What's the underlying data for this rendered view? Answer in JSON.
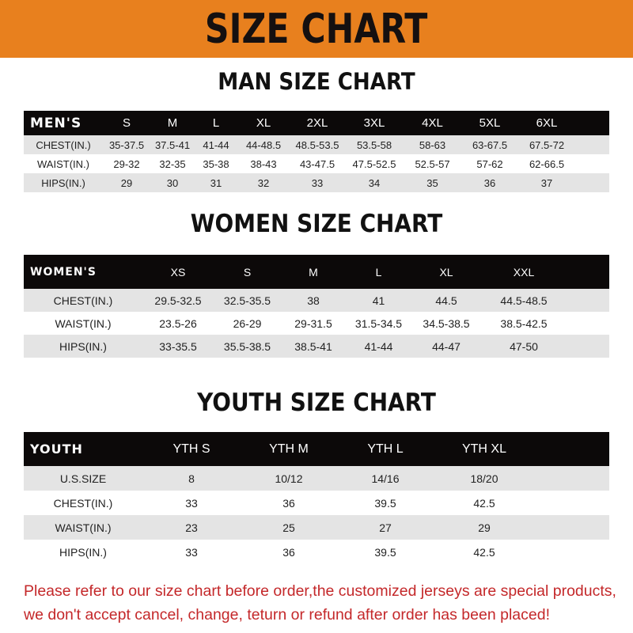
{
  "title": "SIZE CHART",
  "colors": {
    "banner": "#E8801E",
    "header_row": "#0c0909",
    "stripe": "#e4e4e4",
    "note": "#C4282A"
  },
  "men": {
    "title": "MAN SIZE CHART",
    "header": [
      "MEN'S",
      "S",
      "M",
      "L",
      "XL",
      "2XL",
      "3XL",
      "4XL",
      "5XL",
      "6XL"
    ],
    "rows": [
      [
        "CHEST(IN.)",
        "35-37.5",
        "37.5-41",
        "41-44",
        "44-48.5",
        "48.5-53.5",
        "53.5-58",
        "58-63",
        "63-67.5",
        "67.5-72"
      ],
      [
        "WAIST(IN.)",
        "29-32",
        "32-35",
        "35-38",
        "38-43",
        "43-47.5",
        "47.5-52.5",
        "52.5-57",
        "57-62",
        "62-66.5"
      ],
      [
        "HIPS(IN.)",
        "29",
        "30",
        "31",
        "32",
        "33",
        "34",
        "35",
        "36",
        "37"
      ]
    ]
  },
  "women": {
    "title": "WOMEN SIZE CHART",
    "header": [
      "WOMEN'S",
      "XS",
      "S",
      "M",
      "L",
      "XL",
      "XXL"
    ],
    "rows": [
      [
        "CHEST(IN.)",
        "29.5-32.5",
        "32.5-35.5",
        "38",
        "41",
        "44.5",
        "44.5-48.5"
      ],
      [
        "WAIST(IN.)",
        "23.5-26",
        "26-29",
        "29-31.5",
        "31.5-34.5",
        "34.5-38.5",
        "38.5-42.5"
      ],
      [
        "HIPS(IN.)",
        "33-35.5",
        "35.5-38.5",
        "38.5-41",
        "41-44",
        "44-47",
        "47-50"
      ]
    ]
  },
  "youth": {
    "title": "YOUTH SIZE CHART",
    "header": [
      "YOUTH",
      "YTH S",
      "YTH M",
      "YTH L",
      "YTH XL"
    ],
    "rows": [
      [
        "U.S.SIZE",
        "8",
        "10/12",
        "14/16",
        "18/20"
      ],
      [
        "CHEST(IN.)",
        "33",
        "36",
        "39.5",
        "42.5"
      ],
      [
        "WAIST(IN.)",
        "23",
        "25",
        "27",
        "29"
      ],
      [
        "HIPS(IN.)",
        "33",
        "36",
        "39.5",
        "42.5"
      ]
    ]
  },
  "note": {
    "line1": "Please refer to our size chart before order,the customized jerseys are special products,",
    "line2": "we don't accept cancel, change, teturn or refund after order has been placed!"
  }
}
